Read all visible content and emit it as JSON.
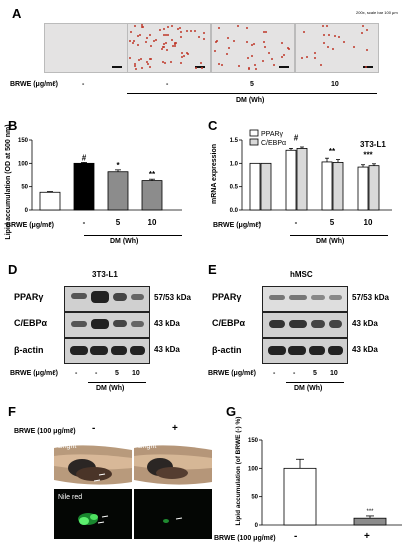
{
  "panel_A": {
    "letter": "A",
    "scale_note": "200x, scale bar 100 μm",
    "brwe_label": "BRWE (μg/mℓ)",
    "columns": [
      "-",
      "-",
      "5",
      "10"
    ],
    "dm_label": "DM (Wh)"
  },
  "panel_B": {
    "letter": "B",
    "ylabel": "Lipid accumulation (OD at 500 nm)",
    "xlabel": "BRWE (μg/mℓ)",
    "dm_label": "DM (Wh)"
  },
  "panel_C": {
    "letter": "C",
    "title": "3T3-L1",
    "ylabel": "mRNA expression",
    "xlabel": "BRWE (μg/mℓ)",
    "dm_label": "DM (Wh)"
  },
  "panel_D": {
    "letter": "D",
    "cell": "3T3-L1",
    "proteins": [
      "PPARγ",
      "C/EBPα",
      "β-actin"
    ],
    "sizes": [
      "57/53 kDa",
      "43 kDa",
      "43 kDa"
    ],
    "brwe_label": "BRWE (μg/mℓ)",
    "lanes": [
      "-",
      "-",
      "5",
      "10"
    ],
    "dm_label": "DM (Wh)"
  },
  "panel_E": {
    "letter": "E",
    "cell": "hMSC",
    "proteins": [
      "PPARγ",
      "C/EBPα",
      "β-actin"
    ],
    "sizes": [
      "57/53 kDa",
      "43 kDa",
      "43 kDa"
    ],
    "brwe_label": "BRWE (μg/mℓ)",
    "lanes": [
      "-",
      "-",
      "5",
      "10"
    ],
    "dm_label": "DM (Wh)"
  },
  "panel_F": {
    "letter": "F",
    "brwe_label": "BRWE (100 μg/mℓ)",
    "columns": [
      "-",
      "+"
    ],
    "bright_label": "Bright",
    "nile_label": "Nile red"
  },
  "panel_G": {
    "letter": "G",
    "ylabel": "Lipid accumulation (of BRWE (-) %)",
    "xlabel": "BRWE (100 μg/mℓ)"
  },
  "chart_data": [
    {
      "panel": "B",
      "type": "bar",
      "categories": [
        "-",
        "-",
        "5",
        "10"
      ],
      "values": [
        38,
        100,
        82,
        63
      ],
      "errors": [
        1.5,
        2,
        4,
        3
      ],
      "ylim": [
        0,
        150
      ],
      "yticks": [
        0,
        50,
        100,
        150
      ],
      "significance": [
        "",
        "#",
        "*",
        "**"
      ],
      "colors": [
        "#ffffff",
        "#000000",
        "#8c8c8c",
        "#8c8c8c"
      ]
    },
    {
      "panel": "C",
      "type": "bar",
      "categories": [
        "-",
        "-",
        "5",
        "10"
      ],
      "series": [
        {
          "name": "PPARγ",
          "values": [
            1.0,
            1.28,
            1.03,
            0.92
          ],
          "errors": [
            0,
            0.04,
            0.08,
            0.05
          ]
        },
        {
          "name": "C/EBPα",
          "values": [
            1.0,
            1.32,
            1.02,
            0.95
          ],
          "errors": [
            0,
            0.03,
            0.06,
            0.04
          ]
        }
      ],
      "ylim": [
        0.0,
        1.5
      ],
      "yticks": [
        "0.0",
        "0.5",
        "1.0",
        "1.5"
      ],
      "significance": [
        "",
        "#",
        "**",
        "***"
      ]
    },
    {
      "panel": "G",
      "type": "bar",
      "categories": [
        "-",
        "+"
      ],
      "values": [
        100,
        12
      ],
      "errors": [
        16,
        4
      ],
      "ylim": [
        0,
        150
      ],
      "yticks": [
        0,
        50,
        100,
        150
      ],
      "significance": [
        "",
        "***"
      ]
    }
  ]
}
